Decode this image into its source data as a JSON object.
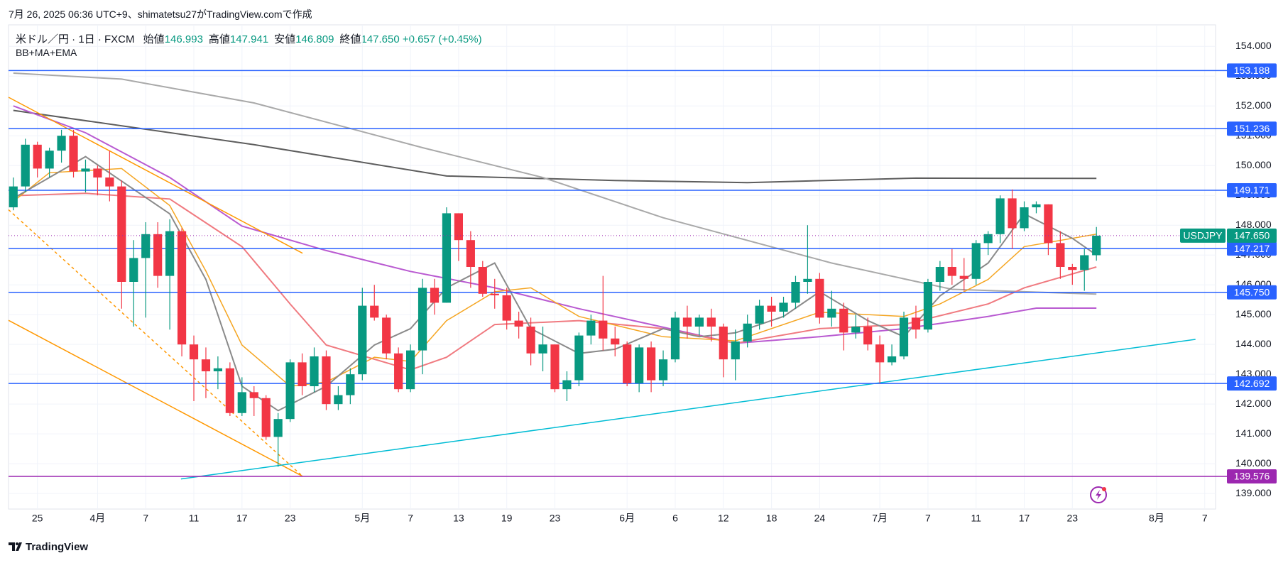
{
  "chart_data": {
    "type": "candlestick",
    "created": "7月 26, 2025 06:36 UTC+9、shimatetsu27がTradingView.comで作成",
    "title": "米ドル／円 · 1日 · FXCM",
    "ohlc_header": [
      {
        "label": "始値",
        "value": "146.993"
      },
      {
        "label": "高値",
        "value": "147.941"
      },
      {
        "label": "安値",
        "value": "146.809"
      },
      {
        "label": "終値",
        "value": "147.650"
      }
    ],
    "change": "+0.657 (+0.45%)",
    "indicators": "BB+MA+EMA",
    "brand": "TradingView",
    "up_color": "#089981",
    "down_color": "#f23645",
    "grid": true,
    "ylim": [
      138.48,
      154.72
    ],
    "yticks": [
      {
        "value": 139,
        "label": "139.000"
      },
      {
        "value": 140,
        "label": "140.000"
      },
      {
        "value": 141,
        "label": "141.000"
      },
      {
        "value": 142,
        "label": "142.000"
      },
      {
        "value": 143,
        "label": "143.000"
      },
      {
        "value": 144,
        "label": "144.000"
      },
      {
        "value": 145,
        "label": "145.000"
      },
      {
        "value": 146,
        "label": "146.000"
      },
      {
        "value": 147,
        "label": "147.000"
      },
      {
        "value": 148,
        "label": "148.000"
      },
      {
        "value": 149,
        "label": "149.000"
      },
      {
        "value": 150,
        "label": "150.000"
      },
      {
        "value": 151,
        "label": "151.000"
      },
      {
        "value": 152,
        "label": "152.000"
      },
      {
        "value": 153,
        "label": "153.000"
      },
      {
        "value": 154,
        "label": "154.000"
      }
    ],
    "xlim": [
      -0.4,
      99.9
    ],
    "categories": [
      null,
      null,
      "25",
      null,
      null,
      null,
      null,
      "4月",
      null,
      null,
      null,
      "7",
      null,
      null,
      null,
      "11",
      null,
      null,
      null,
      "17",
      null,
      null,
      null,
      "23",
      null,
      null,
      null,
      null,
      null,
      "5月",
      null,
      null,
      null,
      "7",
      null,
      null,
      null,
      "13",
      null,
      null,
      null,
      "19",
      null,
      null,
      null,
      "23",
      null,
      null,
      null,
      null,
      null,
      "6月",
      null,
      null,
      null,
      "6",
      null,
      null,
      null,
      "12",
      null,
      null,
      null,
      "18",
      null,
      null,
      null,
      "24",
      null,
      null,
      null,
      null,
      "7月",
      null,
      null,
      null,
      "7",
      null,
      null,
      null,
      "11",
      null,
      null,
      null,
      "17",
      null,
      null,
      null,
      "23",
      null,
      null,
      null,
      null,
      null,
      null,
      "8月",
      null,
      null,
      null,
      "7"
    ],
    "open": [
      148.6,
      149.3,
      150.7,
      149.9,
      150.5,
      151.0,
      149.8,
      149.9,
      149.6,
      149.3,
      146.1,
      146.9,
      147.7,
      146.3,
      147.8,
      144.0,
      143.5,
      143.1,
      143.2,
      141.7,
      142.4,
      142.2,
      140.9,
      141.5,
      143.4,
      142.6,
      143.6,
      142.0,
      142.3,
      143.0,
      145.3,
      144.9,
      143.7,
      142.5,
      143.8,
      145.9,
      145.4,
      148.4,
      147.5,
      146.6,
      145.7,
      145.65,
      144.8,
      144.6,
      143.7,
      144.0,
      142.5,
      142.8,
      144.3,
      144.8,
      144.2,
      144.0,
      142.7,
      143.9,
      142.8,
      143.5,
      144.9,
      144.6,
      144.9,
      144.6,
      143.5,
      144.1,
      144.7,
      145.3,
      145.1,
      145.4,
      146.1,
      146.2,
      144.9,
      145.2,
      144.4,
      144.6,
      144.0,
      143.4,
      143.6,
      144.9,
      144.5,
      146.1,
      146.6,
      146.3,
      146.2,
      147.4,
      147.7,
      148.9,
      147.9,
      148.6,
      148.7,
      147.4,
      146.6,
      146.5,
      146.993,
      null,
      null,
      null,
      null,
      null,
      null,
      null,
      null,
      null
    ],
    "high": [
      149.6,
      150.9,
      150.8,
      150.6,
      151.2,
      151.2,
      150.2,
      150.0,
      150.5,
      149.5,
      147.5,
      148.1,
      148.1,
      148.2,
      147.9,
      144.3,
      143.9,
      143.6,
      143.4,
      142.9,
      142.6,
      142.3,
      141.7,
      143.5,
      143.7,
      143.9,
      143.8,
      142.6,
      143.2,
      145.9,
      146.0,
      145.0,
      143.9,
      144.0,
      146.2,
      146.2,
      148.6,
      148.4,
      147.8,
      146.8,
      146.2,
      145.9,
      145.1,
      144.9,
      144.6,
      144.0,
      143.1,
      144.4,
      145.0,
      146.3,
      144.6,
      144.1,
      144.0,
      144.1,
      143.8,
      145.1,
      145.3,
      145.0,
      145.2,
      144.7,
      144.5,
      145.0,
      145.5,
      145.6,
      145.6,
      146.3,
      148.0,
      146.4,
      145.8,
      145.4,
      145.0,
      144.9,
      144.3,
      144.0,
      145.1,
      145.3,
      146.2,
      146.8,
      147.2,
      146.9,
      147.5,
      147.8,
      149.0,
      149.2,
      148.8,
      148.8,
      148.7,
      147.8,
      146.7,
      147.2,
      147.941,
      null,
      null,
      null,
      null,
      null,
      null,
      null,
      null,
      null
    ],
    "low": [
      148.5,
      149.1,
      149.6,
      149.6,
      150.1,
      149.6,
      149.1,
      149.0,
      148.8,
      145.2,
      144.6,
      144.9,
      145.9,
      144.5,
      143.6,
      142.1,
      142.2,
      142.5,
      141.6,
      141.6,
      141.6,
      140.8,
      139.9,
      141.4,
      142.3,
      142.4,
      141.8,
      141.8,
      142.0,
      142.8,
      144.8,
      143.5,
      142.4,
      142.4,
      143.0,
      145.0,
      145.4,
      146.8,
      145.9,
      145.6,
      145.2,
      144.5,
      144.2,
      143.3,
      143.1,
      142.4,
      142.1,
      142.6,
      144.0,
      143.8,
      143.6,
      142.6,
      142.4,
      142.4,
      142.6,
      143.4,
      144.2,
      144.3,
      144.1,
      142.9,
      142.8,
      143.9,
      144.5,
      144.6,
      144.9,
      145.2,
      145.7,
      144.7,
      144.6,
      143.8,
      144.2,
      143.8,
      142.7,
      143.3,
      143.5,
      144.2,
      144.4,
      145.8,
      146.0,
      145.8,
      146.0,
      147.0,
      147.4,
      147.2,
      147.8,
      148.4,
      147.0,
      146.2,
      146.0,
      145.8,
      146.809,
      null,
      null,
      null,
      null,
      null,
      null,
      null,
      null,
      null
    ],
    "close": [
      149.3,
      150.7,
      149.9,
      150.5,
      151.0,
      149.8,
      149.9,
      149.6,
      149.3,
      146.1,
      146.9,
      147.7,
      146.3,
      147.8,
      144.0,
      143.5,
      143.1,
      143.2,
      141.7,
      142.4,
      142.2,
      140.9,
      141.5,
      143.4,
      142.6,
      143.6,
      142.0,
      142.3,
      143.0,
      145.3,
      144.9,
      143.7,
      142.5,
      143.8,
      145.9,
      145.4,
      148.4,
      147.5,
      146.6,
      145.7,
      145.65,
      144.8,
      144.6,
      143.7,
      144.0,
      142.5,
      142.8,
      144.3,
      144.8,
      144.2,
      144.0,
      142.7,
      143.9,
      142.8,
      143.5,
      144.9,
      144.6,
      144.9,
      144.6,
      143.5,
      144.1,
      144.7,
      145.3,
      145.1,
      145.4,
      146.1,
      146.2,
      144.9,
      145.2,
      144.4,
      144.6,
      144.0,
      143.4,
      143.6,
      144.9,
      144.5,
      146.1,
      146.6,
      146.3,
      146.2,
      147.4,
      147.7,
      148.9,
      147.9,
      148.6,
      148.7,
      147.4,
      146.6,
      146.5,
      146.993,
      147.65,
      null,
      null,
      null,
      null,
      null,
      null,
      null,
      null,
      null
    ],
    "series": [
      {
        "color": "#5d5d5d",
        "width": 2,
        "x": [
          0,
          20,
          36,
          50,
          61,
          75,
          90
        ],
        "values": [
          151.85,
          150.7,
          149.65,
          149.5,
          149.43,
          149.58,
          149.57
        ]
      },
      {
        "color": "#a9a9a9",
        "width": 2,
        "x": [
          0,
          9,
          20,
          34,
          44,
          54,
          68,
          78,
          90
        ],
        "values": [
          153.1,
          152.9,
          152.1,
          150.6,
          149.6,
          148.25,
          146.73,
          145.85,
          145.69
        ]
      },
      {
        "color": "#b95ad1",
        "width": 2,
        "x": [
          0,
          6,
          13,
          19,
          26,
          33,
          40,
          47,
          53,
          60,
          67,
          74,
          81,
          85,
          90
        ],
        "values": [
          152.0,
          151.1,
          149.6,
          147.97,
          147.15,
          146.45,
          145.9,
          145.2,
          144.67,
          144.04,
          144.26,
          144.53,
          144.94,
          145.22,
          145.22
        ]
      },
      {
        "color": "#f07a80",
        "width": 2,
        "x": [
          0,
          6,
          13,
          19,
          23,
          26,
          33,
          36,
          40,
          47,
          54,
          60,
          67,
          74,
          81,
          84,
          90
        ],
        "values": [
          148.99,
          149.07,
          148.88,
          147.28,
          145.36,
          143.98,
          143.15,
          143.57,
          144.67,
          144.8,
          144.53,
          144.04,
          144.53,
          144.67,
          145.36,
          145.9,
          146.6
        ]
      },
      {
        "color": "#f5a623",
        "width": 1.5,
        "x": [
          0,
          3,
          9,
          13,
          16,
          19,
          23,
          26,
          30,
          33,
          36,
          40,
          43,
          47,
          54,
          60,
          67,
          74,
          77,
          81,
          84,
          90
        ],
        "values": [
          148.8,
          149.76,
          149.9,
          148.66,
          146.46,
          143.98,
          142.6,
          142.74,
          143.57,
          143.43,
          144.8,
          145.77,
          145.9,
          144.94,
          144.26,
          144.12,
          145.08,
          144.94,
          145.36,
          146.18,
          147.28,
          147.7
        ]
      },
      {
        "color": "#8a8a8a",
        "width": 2,
        "x": [
          0,
          6,
          13,
          16,
          19,
          22,
          26,
          30,
          33,
          36,
          40,
          43,
          47,
          50,
          54,
          57,
          60,
          64,
          67,
          71,
          74,
          77,
          81,
          84,
          88,
          90
        ],
        "values": [
          148.9,
          150.3,
          148.38,
          146.18,
          142.6,
          141.78,
          142.6,
          143.98,
          144.53,
          145.9,
          146.73,
          144.53,
          143.7,
          143.84,
          144.53,
          144.26,
          144.39,
          144.94,
          145.77,
          144.8,
          144.26,
          145.63,
          146.73,
          148.38,
          147.56,
          147.0
        ]
      }
    ],
    "trendlines": [
      {
        "color": "#ff9800",
        "dash": false,
        "x": [
          -0.4,
          24.03
        ],
        "values": [
          152.29,
          147.06
        ]
      },
      {
        "color": "#ff9800",
        "dash": false,
        "x": [
          -0.4,
          24.03
        ],
        "values": [
          144.81,
          139.58
        ]
      },
      {
        "color": "#ff9800",
        "dash": true,
        "x": [
          -0.4,
          24.03
        ],
        "values": [
          148.52,
          139.58
        ]
      },
      {
        "color": "#00bcd4",
        "dash": false,
        "x": [
          13.93,
          98.23
        ],
        "values": [
          139.49,
          144.17
        ]
      }
    ],
    "levels": [
      {
        "color": "#2962ff",
        "value": 153.188
      },
      {
        "color": "#2962ff",
        "value": 151.236
      },
      {
        "color": "#2962ff",
        "value": 149.171
      },
      {
        "color": "#2962ff",
        "value": 147.217
      },
      {
        "color": "#2962ff",
        "value": {
          "value": 145.75,
          "label": "145.750"
        }
      },
      {
        "color": "#2962ff",
        "value": 142.692
      },
      {
        "color": "#9c27b0",
        "value": 139.576
      }
    ],
    "symbol_label": "USDJPY",
    "last_price": {
      "value": 147.65,
      "label": "147.650"
    },
    "last_color": "#089981"
  }
}
